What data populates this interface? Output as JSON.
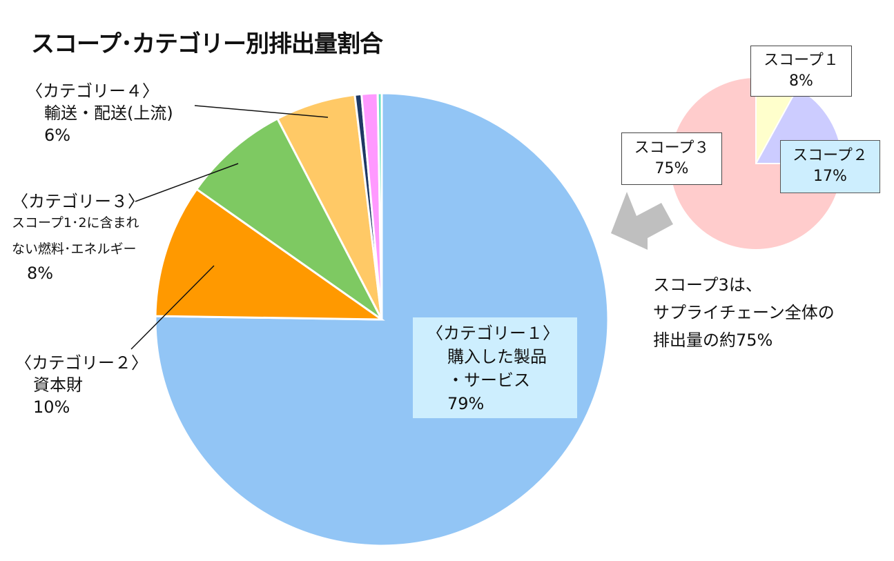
{
  "title": "スコープ･カテゴリー別排出量割合",
  "chart_data": [
    {
      "type": "pie",
      "name": "categories",
      "slices": [
        {
          "label": "〈カテゴリー１〉 購入した製品・サービス",
          "value": 79,
          "color": "#92c5f5"
        },
        {
          "label": "〈カテゴリー２〉 資本財",
          "value": 10,
          "color": "#ff9900"
        },
        {
          "label": "〈カテゴリー３〉 スコープ1･2に含まれない燃料・エネルギー",
          "value": 8,
          "color": "#7ec962"
        },
        {
          "label": "〈カテゴリー４〉 輸送・配送(上流)",
          "value": 6,
          "color": "#ffc966"
        },
        {
          "label": "",
          "value": 0.5,
          "color": "#1f3864"
        },
        {
          "label": "",
          "value": 1.2,
          "color": "#ff99ff"
        },
        {
          "label": "",
          "value": 0.3,
          "color": "#66e0c0"
        }
      ]
    },
    {
      "type": "pie",
      "name": "scopes",
      "slices": [
        {
          "label": "スコープ１",
          "value": 8,
          "color": "#ffffcc"
        },
        {
          "label": "スコープ２",
          "value": 17,
          "color": "#ccccff"
        },
        {
          "label": "スコープ３",
          "value": 75,
          "color": "#ffcccc"
        }
      ]
    }
  ],
  "labels": {
    "cat1": {
      "l1": "〈カテゴリー１〉",
      "l2": "購入した製品",
      "l3": "・サービス",
      "l4": "79%"
    },
    "cat2": {
      "l1": "〈カテゴリー２〉",
      "l2": "資本財",
      "l3": "10%"
    },
    "cat3": {
      "l1": "〈カテゴリー３〉",
      "l2": "スコープ1･2に含まれ",
      "l3": "ない燃料･エネルギー",
      "l4": "8%"
    },
    "cat4": {
      "l1": "〈カテゴリー４〉",
      "l2": "輸送・配送(上流)",
      "l3": "6%"
    },
    "scope1": {
      "l1": "スコープ１",
      "l2": "8%"
    },
    "scope2": {
      "l1": "スコープ２",
      "l2": "17%"
    },
    "scope3": {
      "l1": "スコープ３",
      "l2": "75%"
    }
  },
  "note": {
    "l1": "スコープ3は、",
    "l2": "サプライチェーン全体の",
    "l3": "排出量の約75%"
  },
  "colors": {
    "arrow": "#bfbfbf",
    "label_box": "#cdeefe"
  }
}
